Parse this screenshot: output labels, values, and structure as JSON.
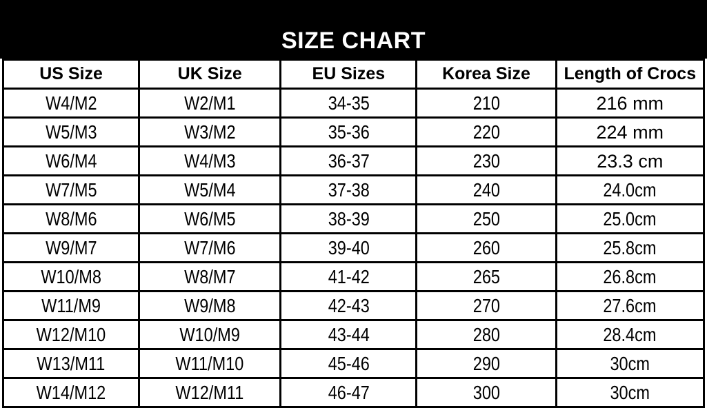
{
  "header": {
    "title": "SIZE CHART"
  },
  "chart_data": {
    "type": "table",
    "title": "SIZE CHART",
    "columns": [
      "US Size",
      "UK Size",
      "EU Sizes",
      "Korea Size",
      "Length of Crocs"
    ],
    "rows": [
      [
        "W4/M2",
        "W2/M1",
        "34-35",
        "210",
        "216 mm"
      ],
      [
        "W5/M3",
        "W3/M2",
        "35-36",
        "220",
        "224 mm"
      ],
      [
        "W6/M4",
        "W4/M3",
        "36-37",
        "230",
        "23.3 cm"
      ],
      [
        "W7/M5",
        "W5/M4",
        "37-38",
        "240",
        "24.0cm"
      ],
      [
        "W8/M6",
        "W6/M5",
        "38-39",
        "250",
        "25.0cm"
      ],
      [
        "W9/M7",
        "W7/M6",
        "39-40",
        "260",
        "25.8cm"
      ],
      [
        "W10/M8",
        "W8/M7",
        "41-42",
        "265",
        "26.8cm"
      ],
      [
        "W11/M9",
        "W9/M8",
        "42-43",
        "270",
        "27.6cm"
      ],
      [
        "W12/M10",
        "W10/M9",
        "43-44",
        "280",
        "28.4cm"
      ],
      [
        "W13/M11",
        "W11/M10",
        "45-46",
        "290",
        "30cm"
      ],
      [
        "W14/M12",
        "W12/M11",
        "46-47",
        "300",
        "30cm"
      ]
    ]
  },
  "presentation": {
    "regular_width_length_rows": [
      0,
      1,
      2
    ],
    "column_widths_percent": [
      19.4,
      20.2,
      19.4,
      19.9,
      21.1
    ],
    "colors": {
      "title_bar_bg": "#000000",
      "title_text": "#ffffff",
      "border": "#000000",
      "cell_bg": "#ffffff",
      "cell_text": "#000000"
    }
  }
}
